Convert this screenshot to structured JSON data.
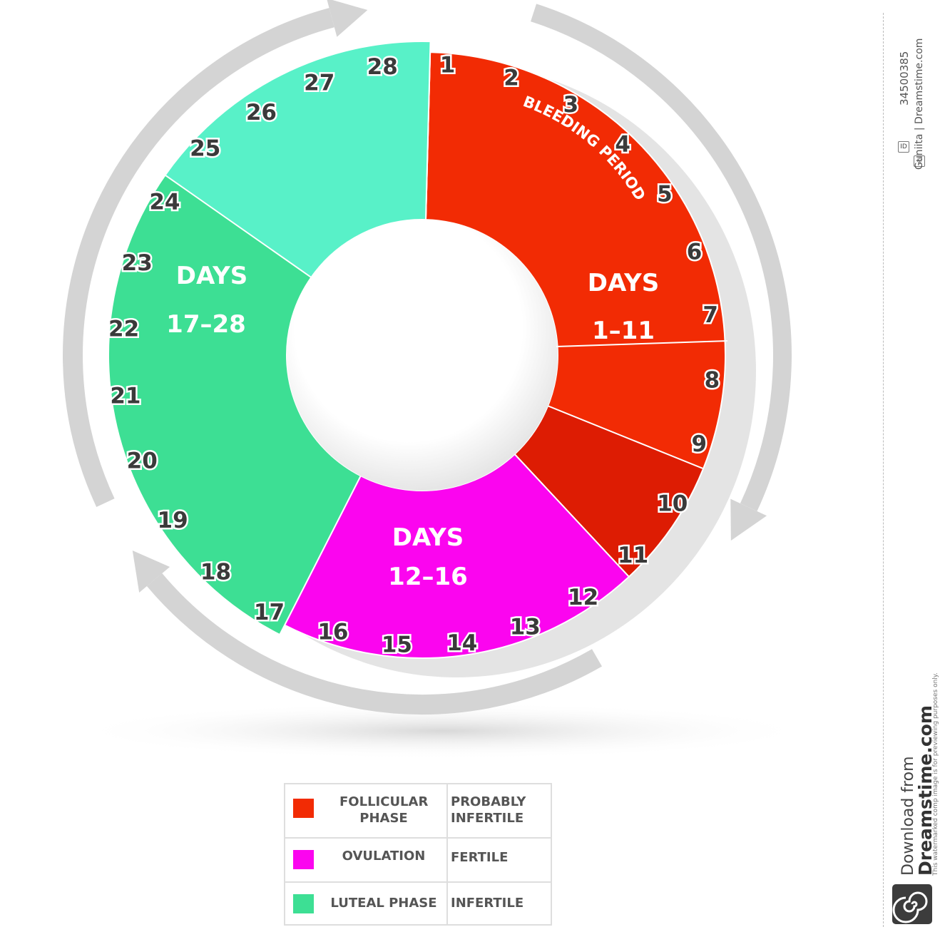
{
  "days": [
    "1",
    "2",
    "3",
    "4",
    "5",
    "6",
    "7",
    "8",
    "9",
    "10",
    "11",
    "12",
    "13",
    "14",
    "15",
    "16",
    "17",
    "18",
    "19",
    "20",
    "21",
    "22",
    "23",
    "24",
    "25",
    "26",
    "27",
    "28"
  ],
  "segments": {
    "follicular": {
      "line1": "DAYS",
      "line2": "1–11",
      "color": "#f22b04",
      "color_dark": "#dd1c03"
    },
    "ovulation": {
      "line1": "DAYS",
      "line2": "12–16",
      "color": "#fb05ef"
    },
    "luteal": {
      "line1": "DAYS",
      "line2": "17–28",
      "color": "#3ddf94",
      "color_light": "#58f1c8"
    }
  },
  "bleeding_label": "BLEEDING PERIOD",
  "legend": [
    {
      "phase": "FOLLICULAR PHASE",
      "fertility": "PROBABLY INFERTILE",
      "color": "#f22b04"
    },
    {
      "phase": "OVULATION",
      "fertility": "FERTILE",
      "color": "#fb05ef"
    },
    {
      "phase": "LUTEAL PHASE",
      "fertility": "INFERTILE",
      "color": "#3ddf94"
    }
  ],
  "watermark": {
    "id_text": "34500385",
    "credit": "Guniita | Dreamstime.com",
    "download": "Download from",
    "brand": "Dreamstime.com",
    "disclaimer": "This watermarked comp image is for previewing purposes only.",
    "id_tag": "ID",
    "copyright_tag": "©"
  }
}
